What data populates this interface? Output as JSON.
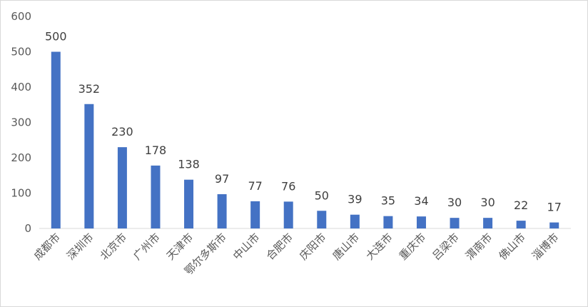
{
  "chart_data": {
    "type": "bar",
    "categories": [
      "成都市",
      "深圳市",
      "北京市",
      "广州市",
      "天津市",
      "鄂尔多斯市",
      "中山市",
      "合肥市",
      "庆阳市",
      "唐山市",
      "大连市",
      "重庆市",
      "吕梁市",
      "渭南市",
      "佛山市",
      "淄博市"
    ],
    "values": [
      500,
      352,
      230,
      178,
      138,
      97,
      77,
      76,
      50,
      39,
      35,
      34,
      30,
      30,
      22,
      17
    ],
    "title": "",
    "xlabel": "",
    "ylabel": "",
    "ylim": [
      0,
      600
    ],
    "yticks": [
      0,
      100,
      200,
      300,
      400,
      500,
      600
    ],
    "grid": false,
    "legend": "none",
    "bar_color": "#4472c4",
    "data_labels": true
  }
}
